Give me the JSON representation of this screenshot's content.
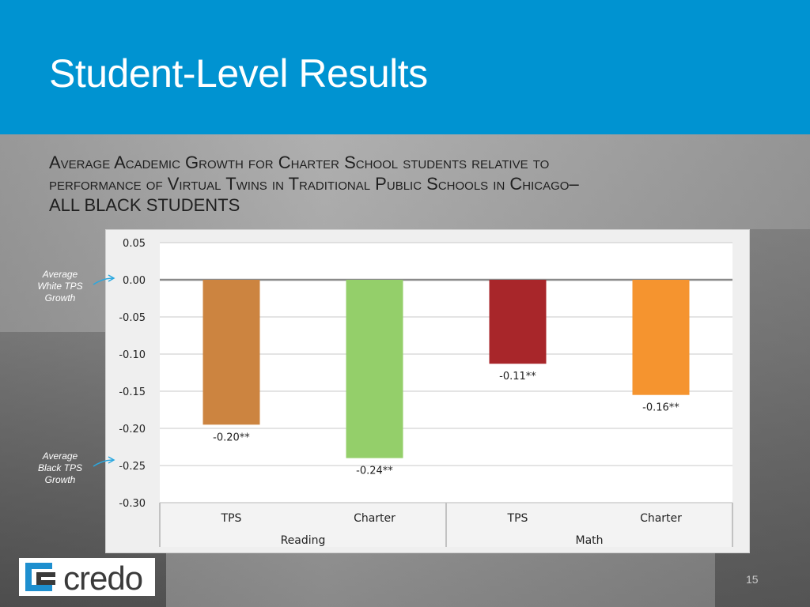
{
  "slide": {
    "title": "Student-Level Results",
    "subtitle_line1": "Average Academic Growth for Charter School students relative to",
    "subtitle_line2": "performance of Virtual Twins in Traditional Public Schools in Chicago–",
    "subtitle_line3": "ALL BLACK STUDENTS",
    "page_number": "15",
    "logo_text": "credo",
    "note_white": [
      "Average",
      "White TPS",
      "Growth"
    ],
    "note_black": [
      "Average",
      "Black TPS",
      "Growth"
    ]
  },
  "colors": {
    "header": "#0093d1",
    "reading_tps": "#cc8440",
    "reading_charter": "#94cf6a",
    "math_tps": "#a8262a",
    "math_charter": "#f5942f",
    "logo_accent": "#1e8fcf"
  },
  "chart_data": {
    "type": "bar",
    "title": "",
    "ylim": [
      -0.3,
      0.05
    ],
    "yticks": [
      0.05,
      0.0,
      -0.05,
      -0.1,
      -0.15,
      -0.2,
      -0.25,
      -0.3
    ],
    "ytick_labels": [
      "0.05",
      "0.00",
      "-0.05",
      "-0.10",
      "-0.15",
      "-0.20",
      "-0.25",
      "-0.30"
    ],
    "groups": [
      "Reading",
      "Math"
    ],
    "categories": [
      "TPS",
      "Charter",
      "TPS",
      "Charter"
    ],
    "values": [
      -0.195,
      -0.24,
      -0.113,
      -0.155
    ],
    "data_labels": [
      "-0.20**",
      "-0.24**",
      "-0.11**",
      "-0.16**"
    ],
    "grid": true
  }
}
